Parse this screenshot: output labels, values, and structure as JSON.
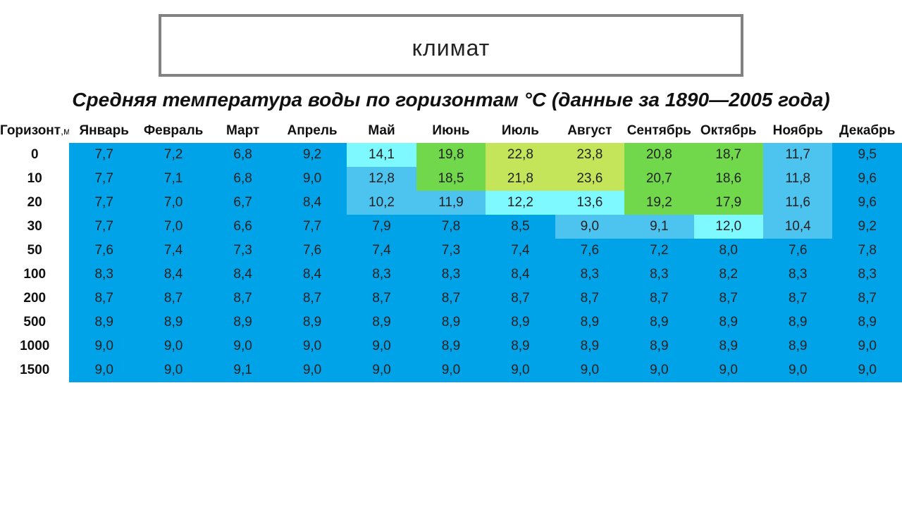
{
  "title": "климат",
  "subtitle": "Средняя температура воды по горизонтам °С (данные за 1890—2005 года)",
  "row_header_label": "Горизонт",
  "row_header_unit": ",м",
  "months": [
    "Январь",
    "Февраль",
    "Март",
    "Апрель",
    "Май",
    "Июнь",
    "Июль",
    "Август",
    "Сентябрь",
    "Октябрь",
    "Ноябрь",
    "Декабрь"
  ],
  "depths": [
    "0",
    "10",
    "20",
    "30",
    "50",
    "100",
    "200",
    "500",
    "1000",
    "1500"
  ],
  "values": [
    [
      "7,7",
      "7,2",
      "6,8",
      "9,2",
      "14,1",
      "19,8",
      "22,8",
      "23,8",
      "20,8",
      "18,7",
      "11,7",
      "9,5"
    ],
    [
      "7,7",
      "7,1",
      "6,8",
      "9,0",
      "12,8",
      "18,5",
      "21,8",
      "23,6",
      "20,7",
      "18,6",
      "11,8",
      "9,6"
    ],
    [
      "7,7",
      "7,0",
      "6,7",
      "8,4",
      "10,2",
      "11,9",
      "12,2",
      "13,6",
      "19,2",
      "17,9",
      "11,6",
      "9,6"
    ],
    [
      "7,7",
      "7,0",
      "6,6",
      "7,7",
      "7,9",
      "7,8",
      "8,5",
      "9,0",
      "9,1",
      "12,0",
      "10,4",
      "9,2"
    ],
    [
      "7,6",
      "7,4",
      "7,3",
      "7,6",
      "7,4",
      "7,3",
      "7,4",
      "7,6",
      "7,2",
      "8,0",
      "7,6",
      "7,8"
    ],
    [
      "8,3",
      "8,4",
      "8,4",
      "8,4",
      "8,3",
      "8,3",
      "8,4",
      "8,3",
      "8,3",
      "8,2",
      "8,3",
      "8,3"
    ],
    [
      "8,7",
      "8,7",
      "8,7",
      "8,7",
      "8,7",
      "8,7",
      "8,7",
      "8,7",
      "8,7",
      "8,7",
      "8,7",
      "8,7"
    ],
    [
      "8,9",
      "8,9",
      "8,9",
      "8,9",
      "8,9",
      "8,9",
      "8,9",
      "8,9",
      "8,9",
      "8,9",
      "8,9",
      "8,9"
    ],
    [
      "9,0",
      "9,0",
      "9,0",
      "9,0",
      "9,0",
      "8,9",
      "8,9",
      "8,9",
      "8,9",
      "8,9",
      "8,9",
      "9,0"
    ],
    [
      "9,0",
      "9,0",
      "9,1",
      "9,0",
      "9,0",
      "9,0",
      "9,0",
      "9,0",
      "9,0",
      "9,0",
      "9,0",
      "9,0"
    ]
  ],
  "cell_colors": [
    [
      "#00a2e8",
      "#00a2e8",
      "#00a2e8",
      "#00a2e8",
      "#7ef9ff",
      "#70d84a",
      "#c4e55a",
      "#c4e55a",
      "#70d84a",
      "#70d84a",
      "#4dc3f0",
      "#00a2e8"
    ],
    [
      "#00a2e8",
      "#00a2e8",
      "#00a2e8",
      "#00a2e8",
      "#4dc3f0",
      "#70d84a",
      "#c4e55a",
      "#c4e55a",
      "#70d84a",
      "#70d84a",
      "#4dc3f0",
      "#00a2e8"
    ],
    [
      "#00a2e8",
      "#00a2e8",
      "#00a2e8",
      "#00a2e8",
      "#4dc3f0",
      "#4dc3f0",
      "#7ef9ff",
      "#7ef9ff",
      "#70d84a",
      "#70d84a",
      "#4dc3f0",
      "#00a2e8"
    ],
    [
      "#00a2e8",
      "#00a2e8",
      "#00a2e8",
      "#00a2e8",
      "#00a2e8",
      "#00a2e8",
      "#00a2e8",
      "#4dc3f0",
      "#4dc3f0",
      "#7ef9ff",
      "#4dc3f0",
      "#00a2e8"
    ],
    [
      "#00a2e8",
      "#00a2e8",
      "#00a2e8",
      "#00a2e8",
      "#00a2e8",
      "#00a2e8",
      "#00a2e8",
      "#00a2e8",
      "#00a2e8",
      "#00a2e8",
      "#00a2e8",
      "#00a2e8"
    ],
    [
      "#00a2e8",
      "#00a2e8",
      "#00a2e8",
      "#00a2e8",
      "#00a2e8",
      "#00a2e8",
      "#00a2e8",
      "#00a2e8",
      "#00a2e8",
      "#00a2e8",
      "#00a2e8",
      "#00a2e8"
    ],
    [
      "#00a2e8",
      "#00a2e8",
      "#00a2e8",
      "#00a2e8",
      "#00a2e8",
      "#00a2e8",
      "#00a2e8",
      "#00a2e8",
      "#00a2e8",
      "#00a2e8",
      "#00a2e8",
      "#00a2e8"
    ],
    [
      "#00a2e8",
      "#00a2e8",
      "#00a2e8",
      "#00a2e8",
      "#00a2e8",
      "#00a2e8",
      "#00a2e8",
      "#00a2e8",
      "#00a2e8",
      "#00a2e8",
      "#00a2e8",
      "#00a2e8"
    ],
    [
      "#00a2e8",
      "#00a2e8",
      "#00a2e8",
      "#00a2e8",
      "#00a2e8",
      "#00a2e8",
      "#00a2e8",
      "#00a2e8",
      "#00a2e8",
      "#00a2e8",
      "#00a2e8",
      "#00a2e8"
    ],
    [
      "#00a2e8",
      "#00a2e8",
      "#00a2e8",
      "#00a2e8",
      "#00a2e8",
      "#00a2e8",
      "#00a2e8",
      "#00a2e8",
      "#00a2e8",
      "#00a2e8",
      "#00a2e8",
      "#00a2e8"
    ]
  ],
  "style": {
    "title_fontsize": 32,
    "subtitle_fontsize": 28,
    "header_fontsize": 19,
    "cell_fontsize": 19,
    "title_border_color": "#828282",
    "cell_text_color": "#222222",
    "page_background": "#ffffff"
  }
}
